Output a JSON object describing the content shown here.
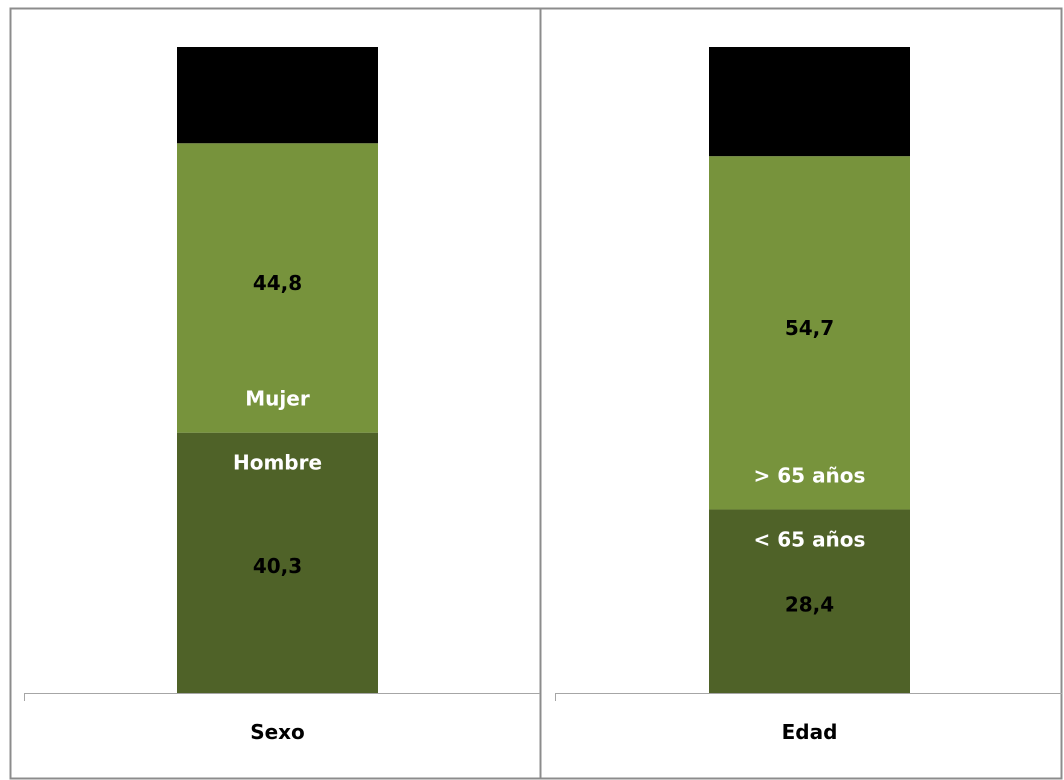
{
  "chart_data": [
    {
      "type": "bar",
      "stacked": true,
      "categories": [
        "Sexo"
      ],
      "series": [
        {
          "name": "Hombre",
          "values": [
            40.3
          ],
          "value_labels": [
            "40,3"
          ],
          "color": "#4f6228"
        },
        {
          "name": "Mujer",
          "values": [
            44.8
          ],
          "value_labels": [
            "44,8"
          ],
          "color": "#77933c"
        },
        {
          "values": [
            14.9
          ],
          "color": "#000000"
        }
      ]
    },
    {
      "type": "bar",
      "stacked": true,
      "categories": [
        "Edad"
      ],
      "series": [
        {
          "name": "< 65 años",
          "values": [
            28.4
          ],
          "value_labels": [
            "28,4"
          ],
          "color": "#4f6228"
        },
        {
          "name": "> 65 años",
          "values": [
            54.7
          ],
          "value_labels": [
            "54,7"
          ],
          "color": "#77933c"
        },
        {
          "values": [
            16.9
          ],
          "color": "#000000"
        }
      ]
    }
  ],
  "colors": {
    "background": "#ffffff",
    "frame": "#8c8c8c",
    "axis": "#a6a6a6",
    "value_text": "#000000",
    "series_name_text": "#ffffff"
  }
}
